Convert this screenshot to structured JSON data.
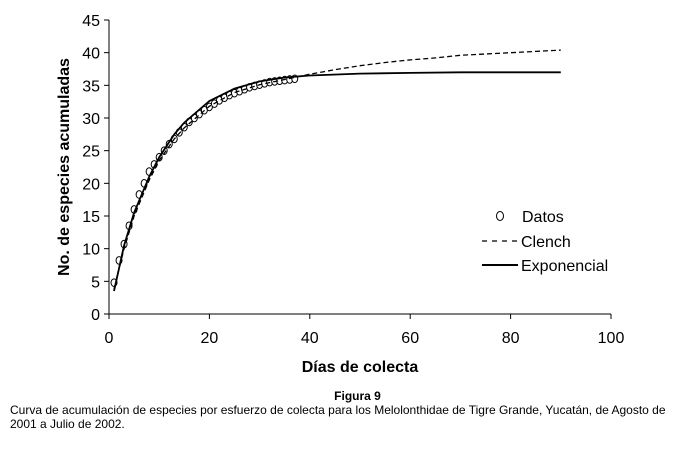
{
  "chart_data": {
    "type": "line",
    "xlabel": "Días de colecta",
    "ylabel": "No. de especies acumuladas",
    "xlim": [
      0,
      100
    ],
    "ylim": [
      0,
      45
    ],
    "xticks": [
      0,
      20,
      40,
      60,
      80,
      100
    ],
    "yticks": [
      0,
      5,
      10,
      15,
      20,
      25,
      30,
      35,
      40,
      45
    ],
    "grid": false,
    "legend_position": "right",
    "series": [
      {
        "name": "Datos",
        "style": "markers",
        "x": [
          1,
          2,
          3,
          4,
          5,
          6,
          7,
          8,
          9,
          10,
          11,
          12,
          13,
          14,
          15,
          16,
          17,
          18,
          19,
          20,
          21,
          22,
          23,
          24,
          25,
          26,
          27,
          28,
          29,
          30,
          31,
          32,
          33,
          34,
          35,
          36,
          37
        ],
        "y": [
          4.8,
          8.2,
          10.7,
          13.5,
          16.0,
          18.3,
          20.0,
          21.8,
          22.9,
          24.0,
          25.0,
          26.0,
          26.8,
          27.8,
          28.6,
          29.4,
          30.0,
          30.6,
          31.2,
          31.7,
          32.2,
          32.7,
          33.1,
          33.5,
          33.8,
          34.1,
          34.4,
          34.7,
          34.9,
          35.1,
          35.3,
          35.5,
          35.6,
          35.7,
          35.8,
          35.9,
          36.0
        ]
      },
      {
        "name": "Clench",
        "style": "dashed",
        "x": [
          1,
          3,
          5,
          8,
          10,
          13,
          15,
          20,
          25,
          30,
          35,
          40,
          45,
          50,
          55,
          60,
          65,
          70,
          75,
          80,
          85,
          90
        ],
        "y": [
          3.8,
          10.0,
          15.0,
          20.5,
          23.5,
          26.8,
          28.5,
          31.8,
          33.9,
          35.1,
          35.9,
          36.7,
          37.4,
          38.0,
          38.5,
          38.9,
          39.2,
          39.6,
          39.8,
          40.0,
          40.2,
          40.4
        ]
      },
      {
        "name": "Exponencial",
        "style": "solid",
        "x": [
          1,
          3,
          5,
          8,
          10,
          13,
          15,
          20,
          25,
          30,
          35,
          40,
          50,
          60,
          70,
          80,
          90
        ],
        "y": [
          3.5,
          10.5,
          15.5,
          21.0,
          24.0,
          27.5,
          29.3,
          32.6,
          34.5,
          35.6,
          36.2,
          36.5,
          36.8,
          36.9,
          37.0,
          37.0,
          37.0
        ]
      }
    ]
  },
  "caption": {
    "label": "Figura 9",
    "text": "Curva de acumulación de especies por esfuerzo de colecta para los Melolonthidae de Tigre Grande, Yucatán, de Agosto de 2001 a Julio de 2002."
  }
}
